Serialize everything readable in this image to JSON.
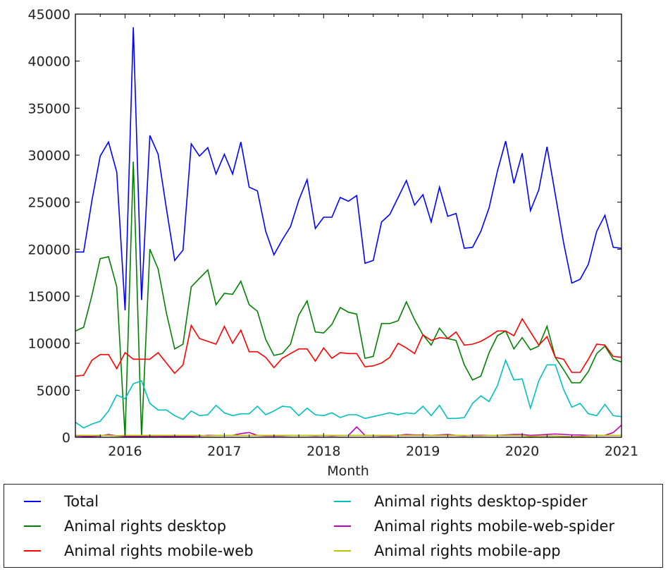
{
  "chart_data": {
    "type": "line",
    "title": "",
    "xlabel": "Month",
    "ylabel": "",
    "ylim": [
      0,
      45000
    ],
    "yticks": [
      "0",
      "5000",
      "10000",
      "15000",
      "20000",
      "25000",
      "30000",
      "35000",
      "40000",
      "45000"
    ],
    "xticks": [
      "2016",
      "2017",
      "2018",
      "2019",
      "2020",
      "2021"
    ],
    "x_start": "2015-07",
    "x_end": "2021-01",
    "grid": false,
    "legend_position": "below",
    "series": [
      {
        "name": "Total",
        "color": "#0000ff",
        "values": [
          19700,
          19700,
          25200,
          29900,
          31400,
          28200,
          13500,
          43600,
          14600,
          32100,
          30100,
          24300,
          18800,
          19900,
          31200,
          29900,
          30800,
          28000,
          30100,
          28000,
          31400,
          26600,
          26200,
          21900,
          19400,
          21000,
          22400,
          25200,
          27400,
          22200,
          23400,
          23400,
          25500,
          25100,
          25700,
          18500,
          18800,
          22900,
          23700,
          25500,
          27300,
          24700,
          25800,
          22900,
          26600,
          23500,
          23800,
          20100,
          20200,
          21900,
          24400,
          28300,
          31500,
          27000,
          30200,
          24100,
          26300,
          30900,
          25800,
          20700,
          16400,
          16800,
          18400,
          21900,
          23600,
          20200,
          20100
        ]
      },
      {
        "name": "Animal rights desktop",
        "color": "#008000",
        "values": [
          11300,
          11700,
          15100,
          19000,
          19200,
          16000,
          0,
          29300,
          0,
          20000,
          17900,
          13200,
          9400,
          9900,
          16000,
          16900,
          17800,
          14100,
          15300,
          15200,
          16600,
          14100,
          13400,
          10400,
          8700,
          8900,
          9900,
          13000,
          14500,
          11200,
          11100,
          12000,
          13800,
          13300,
          13100,
          8400,
          8600,
          12100,
          12100,
          12400,
          14400,
          12500,
          10900,
          9800,
          11600,
          10500,
          10300,
          7700,
          6100,
          6500,
          9000,
          10800,
          11300,
          9400,
          10600,
          9300,
          9700,
          11800,
          8500,
          7200,
          5800,
          5800,
          7000,
          8900,
          9700,
          8300,
          8000
        ]
      },
      {
        "name": "Animal rights mobile-web",
        "color": "#ff0000",
        "values": [
          6500,
          6600,
          8200,
          8800,
          8800,
          7300,
          9000,
          8300,
          8300,
          8300,
          9000,
          7900,
          6800,
          7700,
          11900,
          10500,
          10200,
          9900,
          11800,
          10000,
          11400,
          9100,
          9100,
          8500,
          7400,
          8400,
          8900,
          9400,
          9400,
          8100,
          9500,
          8400,
          9000,
          8900,
          8900,
          7500,
          7600,
          7900,
          8500,
          10000,
          9500,
          8900,
          10900,
          10300,
          10600,
          10500,
          11200,
          9800,
          9900,
          10200,
          10700,
          11300,
          11300,
          10800,
          12600,
          11200,
          9800,
          10700,
          8500,
          8300,
          6900,
          6900,
          8300,
          9900,
          9800,
          8600,
          8500
        ]
      },
      {
        "name": "Animal rights desktop-spider",
        "color": "#00bfbf",
        "values": [
          1600,
          1000,
          1400,
          1700,
          2800,
          4500,
          4100,
          5700,
          6000,
          3600,
          2900,
          2900,
          2300,
          1900,
          2800,
          2300,
          2400,
          3400,
          2600,
          2300,
          2500,
          2500,
          3300,
          2400,
          2800,
          3300,
          3200,
          2300,
          3100,
          2400,
          2300,
          2600,
          2100,
          2400,
          2400,
          2000,
          2200,
          2400,
          2600,
          2400,
          2600,
          2500,
          3300,
          2300,
          3400,
          2000,
          2000,
          2100,
          3600,
          4400,
          3800,
          5500,
          8200,
          6100,
          6200,
          3100,
          6000,
          7700,
          7700,
          5100,
          3200,
          3600,
          2500,
          2300,
          3500,
          2300,
          2200
        ]
      },
      {
        "name": "Animal rights mobile-web-spider",
        "color": "#bf00bf",
        "values": [
          150,
          100,
          100,
          150,
          300,
          150,
          100,
          100,
          100,
          120,
          120,
          100,
          100,
          100,
          100,
          150,
          200,
          200,
          200,
          200,
          400,
          500,
          200,
          150,
          150,
          150,
          200,
          200,
          200,
          150,
          200,
          150,
          200,
          200,
          1100,
          200,
          200,
          150,
          150,
          200,
          300,
          250,
          250,
          200,
          250,
          300,
          200,
          150,
          200,
          200,
          200,
          200,
          250,
          300,
          300,
          200,
          250,
          300,
          350,
          300,
          250,
          250,
          200,
          200,
          200,
          500,
          1300
        ]
      },
      {
        "name": "Animal rights mobile-app",
        "color": "#bfbf00",
        "values": [
          200,
          200,
          200,
          200,
          200,
          150,
          200,
          200,
          200,
          200,
          200,
          200,
          200,
          200,
          200,
          200,
          150,
          200,
          200,
          200,
          200,
          200,
          200,
          200,
          200,
          200,
          200,
          200,
          200,
          200,
          200,
          200,
          200,
          200,
          200,
          200,
          200,
          200,
          200,
          200,
          200,
          200,
          200,
          200,
          200,
          200,
          200,
          200,
          150,
          150,
          200,
          200,
          200,
          200,
          200,
          100,
          150,
          150,
          150,
          100,
          50,
          100,
          150,
          200,
          200,
          200,
          200
        ]
      }
    ]
  }
}
